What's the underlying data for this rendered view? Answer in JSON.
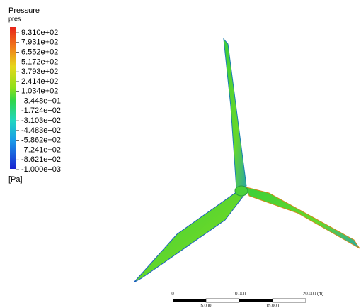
{
  "legend": {
    "title": "Pressure",
    "variable": "pres",
    "labels": [
      "9.310e+02",
      "7.931e+02",
      "6.552e+02",
      "5.172e+02",
      "3.793e+02",
      "2.414e+02",
      "1.034e+02",
      "-3.448e+01",
      "-1.724e+02",
      "-3.103e+02",
      "-4.483e+02",
      "-5.862e+02",
      "-7.241e+02",
      "-8.621e+02",
      "-1.000e+03"
    ],
    "unit": "[Pa]"
  },
  "scale": {
    "top_labels": [
      "0",
      "10.000",
      "20.000 (m)"
    ],
    "bottom_labels": [
      "5.000",
      "15.000"
    ]
  }
}
